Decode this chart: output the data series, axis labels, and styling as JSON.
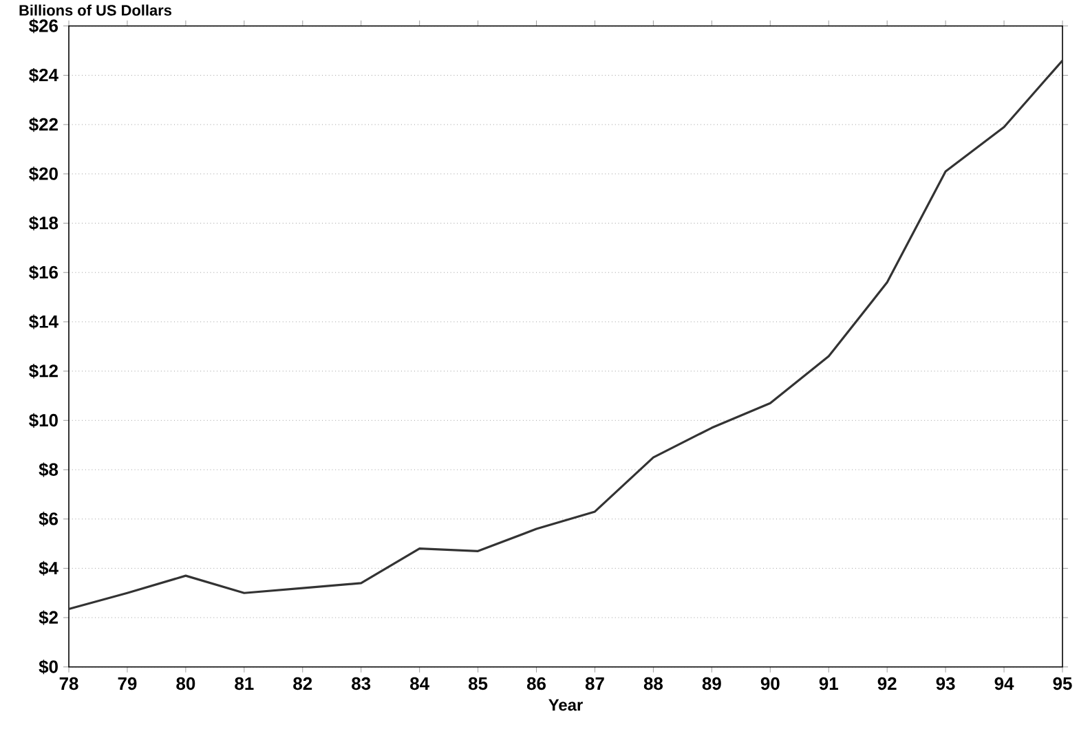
{
  "chart_data": {
    "type": "line",
    "xlabel": "Year",
    "ylabel": "Billions of US Dollars",
    "x": [
      78,
      79,
      80,
      81,
      82,
      83,
      84,
      85,
      86,
      87,
      88,
      89,
      90,
      91,
      92,
      93,
      94,
      95
    ],
    "series": [
      {
        "color": "#333333",
        "values": [
          2.35,
          3.0,
          3.7,
          3.0,
          3.2,
          3.4,
          4.8,
          4.7,
          5.6,
          6.3,
          8.5,
          9.7,
          10.7,
          12.6,
          15.6,
          20.1,
          21.9,
          24.6
        ]
      }
    ],
    "xlim": [
      78,
      95
    ],
    "ylim": [
      0,
      26
    ],
    "xticks": [
      78,
      79,
      80,
      81,
      82,
      83,
      84,
      85,
      86,
      87,
      88,
      89,
      90,
      91,
      92,
      93,
      94,
      95
    ],
    "yticks": [
      {
        "value": 0,
        "label": "$0"
      },
      {
        "value": 2,
        "label": "$2"
      },
      {
        "value": 4,
        "label": "$4"
      },
      {
        "value": 6,
        "label": "$6"
      },
      {
        "value": 8,
        "label": "$8"
      },
      {
        "value": 10,
        "label": "$10"
      },
      {
        "value": 12,
        "label": "$12"
      },
      {
        "value": 14,
        "label": "$14"
      },
      {
        "value": 16,
        "label": "$16"
      },
      {
        "value": 18,
        "label": "$18"
      },
      {
        "value": 20,
        "label": "$20"
      },
      {
        "value": 22,
        "label": "$22"
      },
      {
        "value": 24,
        "label": "$24"
      },
      {
        "value": 26,
        "label": "$26"
      }
    ],
    "grid": "y",
    "marker": "none",
    "line_style": "solid"
  }
}
